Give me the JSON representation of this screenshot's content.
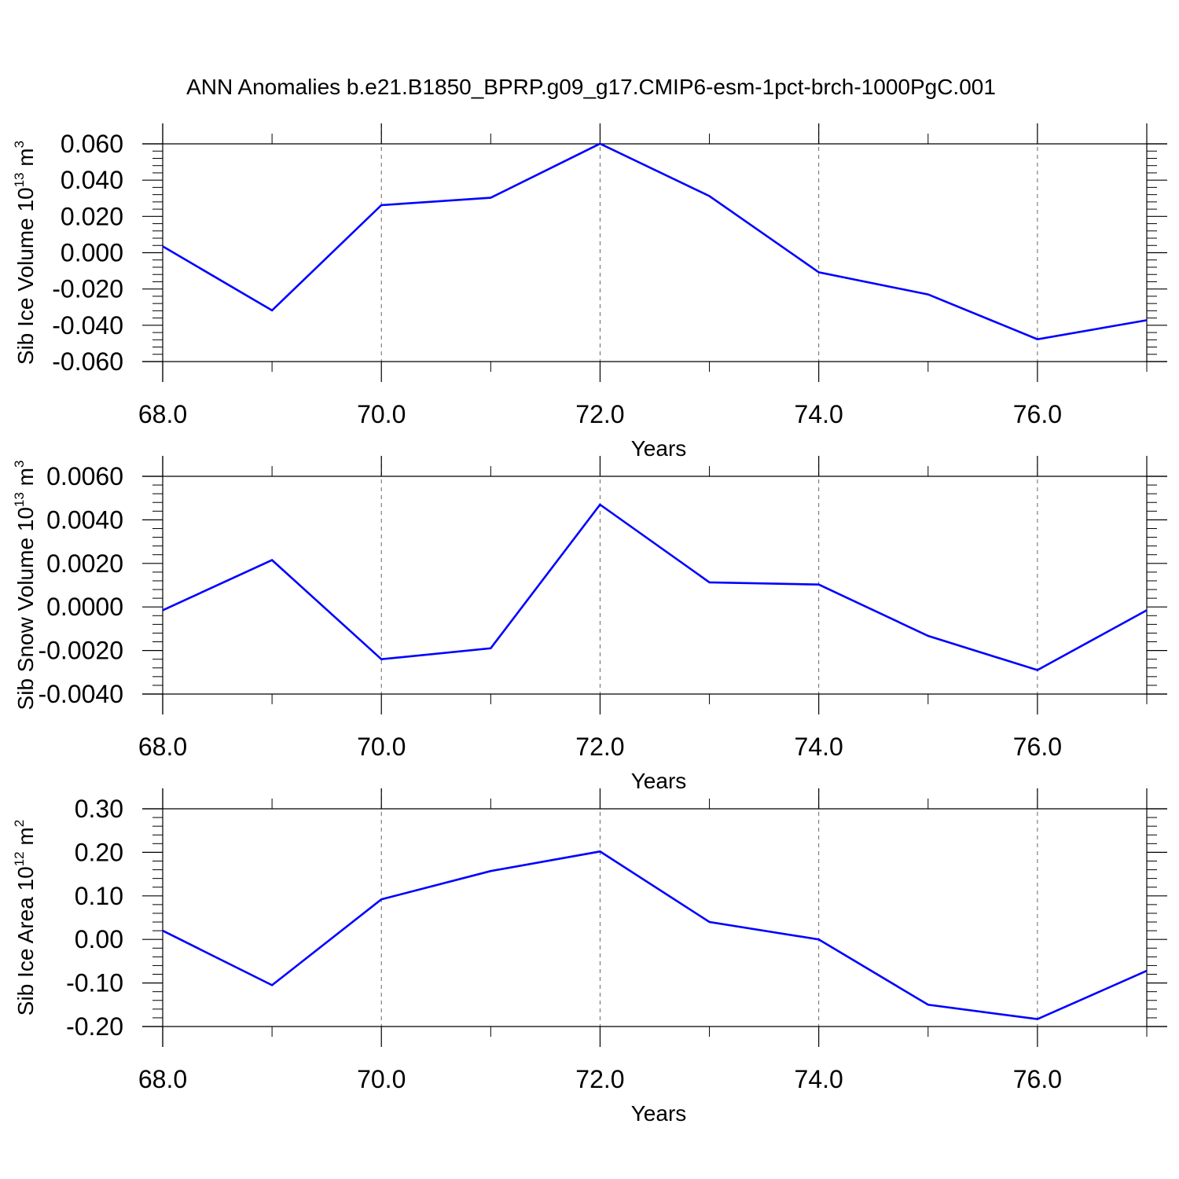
{
  "title": "ANN Anomalies b.e21.B1850_BPRP.g09_g17.CMIP6-esm-1pct-brch-1000PgC.001",
  "line_color": "#0000ff",
  "chart_data": [
    {
      "type": "line",
      "x": [
        68,
        69,
        70,
        71,
        72,
        73,
        74,
        75,
        76,
        77
      ],
      "series": [
        {
          "values": [
            0.0035,
            -0.0318,
            0.0262,
            0.0303,
            0.0601,
            0.0312,
            -0.0108,
            -0.023,
            -0.0477,
            -0.0372
          ]
        }
      ],
      "xlabel": "Years",
      "ylabel_main": "Sib Ice Volume 10",
      "ylabel_sup": "13",
      "ylabel_unit": " m",
      "ylabel_unit_sup": "3",
      "xlim": [
        68,
        77
      ],
      "ylim": [
        -0.06,
        0.06
      ],
      "xticks": [
        68,
        70,
        72,
        74,
        76
      ],
      "xtick_labels": [
        "68.0",
        "70.0",
        "72.0",
        "74.0",
        "76.0"
      ],
      "yticks": [
        -0.06,
        -0.04,
        -0.02,
        0.0,
        0.02,
        0.04,
        0.06
      ],
      "ytick_labels": [
        "-0.060",
        "-0.040",
        "-0.020",
        "0.000",
        "0.020",
        "0.040",
        "0.060"
      ],
      "grid": "vertical dashed at major x ticks"
    },
    {
      "type": "line",
      "x": [
        68,
        69,
        70,
        71,
        72,
        73,
        74,
        75,
        76,
        77
      ],
      "series": [
        {
          "values": [
            -0.00015,
            0.00215,
            -0.0024,
            -0.0019,
            0.0047,
            0.00113,
            0.00103,
            -0.00133,
            -0.0029,
            -0.00015
          ]
        }
      ],
      "xlabel": "Years",
      "ylabel_main": "Sib Snow Volume 10",
      "ylabel_sup": "13",
      "ylabel_unit": " m",
      "ylabel_unit_sup": "3",
      "xlim": [
        68,
        77
      ],
      "ylim": [
        -0.004,
        0.006
      ],
      "xticks": [
        68,
        70,
        72,
        74,
        76
      ],
      "xtick_labels": [
        "68.0",
        "70.0",
        "72.0",
        "74.0",
        "76.0"
      ],
      "yticks": [
        -0.004,
        -0.002,
        0.0,
        0.002,
        0.004,
        0.006
      ],
      "ytick_labels": [
        "-0.0040",
        "-0.0020",
        "0.0000",
        "0.0020",
        "0.0040",
        "0.0060"
      ],
      "grid": "vertical dashed at major x ticks"
    },
    {
      "type": "line",
      "x": [
        68,
        69,
        70,
        71,
        72,
        73,
        74,
        75,
        76,
        77
      ],
      "series": [
        {
          "values": [
            0.02,
            -0.105,
            0.092,
            0.157,
            0.202,
            0.04,
            0.0,
            -0.15,
            -0.183,
            -0.072
          ]
        }
      ],
      "xlabel": "Years",
      "ylabel_main": "Sib Ice Area 10",
      "ylabel_sup": "12",
      "ylabel_unit": " m",
      "ylabel_unit_sup": "2",
      "xlim": [
        68,
        77
      ],
      "ylim": [
        -0.2,
        0.3
      ],
      "xticks": [
        68,
        70,
        72,
        74,
        76
      ],
      "xtick_labels": [
        "68.0",
        "70.0",
        "72.0",
        "74.0",
        "76.0"
      ],
      "yticks": [
        -0.2,
        -0.1,
        0.0,
        0.1,
        0.2,
        0.3
      ],
      "ytick_labels": [
        "-0.20",
        "-0.10",
        "0.00",
        "0.10",
        "0.20",
        "0.30"
      ],
      "grid": "vertical dashed at major x ticks"
    }
  ]
}
